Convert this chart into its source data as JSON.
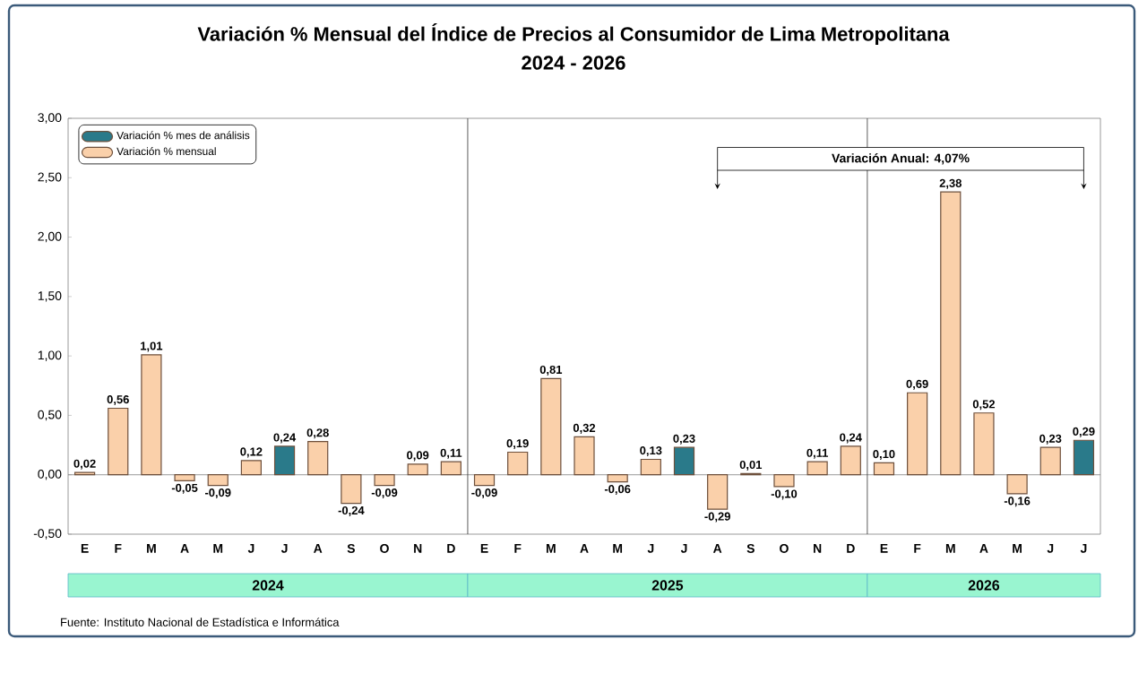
{
  "chart_data": {
    "type": "bar",
    "title": "Variación % Mensual del Índice de Precios al Consumidor de Lima Metropolitana",
    "subtitle": "2024 - 2026",
    "categories": [
      "E",
      "F",
      "M",
      "A",
      "M",
      "J",
      "J",
      "A",
      "S",
      "O",
      "N",
      "D",
      "E",
      "F",
      "M",
      "A",
      "M",
      "J",
      "J",
      "A",
      "S",
      "O",
      "N",
      "D",
      "E",
      "F",
      "M",
      "A",
      "M",
      "J",
      "J"
    ],
    "series": [
      {
        "name": "Variación % mes de análisis",
        "color": "#2a7a8a",
        "values": [
          null,
          null,
          null,
          null,
          null,
          null,
          0.24,
          null,
          null,
          null,
          null,
          null,
          null,
          null,
          null,
          null,
          null,
          null,
          0.23,
          null,
          null,
          null,
          null,
          null,
          null,
          null,
          null,
          null,
          null,
          null,
          0.29
        ]
      },
      {
        "name": "Variación % mensual",
        "color": "#fad0aa",
        "values": [
          0.02,
          0.56,
          1.01,
          -0.05,
          -0.09,
          0.12,
          null,
          0.28,
          -0.24,
          -0.09,
          0.09,
          0.11,
          -0.09,
          0.19,
          0.81,
          0.32,
          -0.06,
          0.13,
          null,
          -0.29,
          0.01,
          -0.1,
          0.11,
          0.24,
          0.1,
          0.69,
          2.38,
          0.52,
          -0.16,
          0.23,
          null
        ]
      }
    ],
    "value_labels": [
      "0,02",
      "0,56",
      "1,01",
      "-0,05",
      "-0,09",
      "0,12",
      "0,24",
      "0,28",
      "-0,24",
      "-0,09",
      "0,09",
      "0,11",
      "-0,09",
      "0,19",
      "0,81",
      "0,32",
      "-0,06",
      "0,13",
      "0,23",
      "-0,29",
      "0,01",
      "-0,10",
      "0,11",
      "0,24",
      "0,10",
      "0,69",
      "2,38",
      "0,52",
      "-0,16",
      "0,23",
      "0,29"
    ],
    "ylim": [
      -0.5,
      3
    ],
    "yticks": [
      {
        "value": -0.5,
        "label": "-0,50"
      },
      {
        "value": 0,
        "label": "0,00"
      },
      {
        "value": 0.5,
        "label": "0,50"
      },
      {
        "value": 1,
        "label": "1,00"
      },
      {
        "value": 1.5,
        "label": "1,50"
      },
      {
        "value": 2,
        "label": "2,00"
      },
      {
        "value": 2.5,
        "label": "2,50"
      },
      {
        "value": 3,
        "label": "3,00"
      }
    ],
    "annotations": [
      "2024",
      "2025",
      "2026",
      "Variación Anual: 4,07%",
      "Fuente: Instituto Nacional de Estadística e Informática"
    ],
    "legend": "top left"
  }
}
